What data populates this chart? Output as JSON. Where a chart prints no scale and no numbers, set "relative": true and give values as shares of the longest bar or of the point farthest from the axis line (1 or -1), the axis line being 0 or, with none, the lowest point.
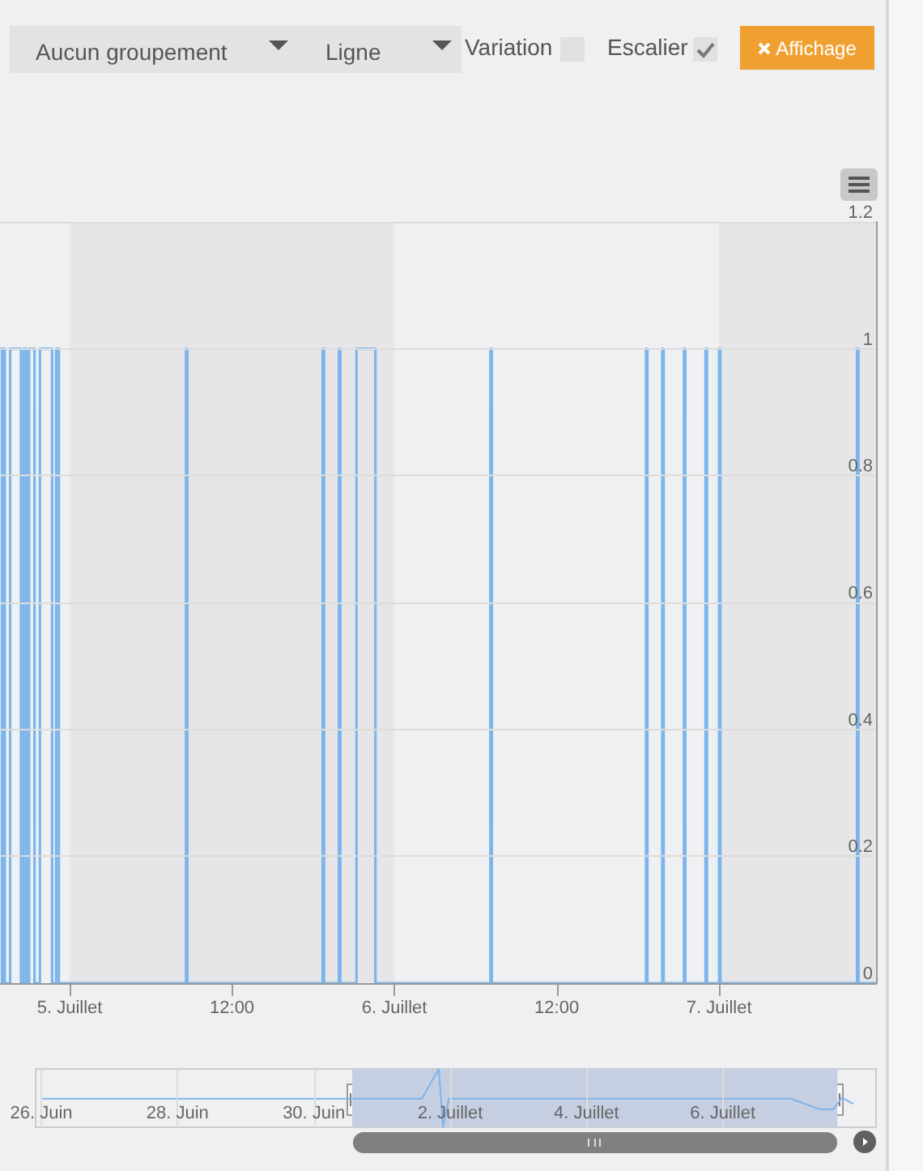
{
  "chart_data": [
    {
      "type": "other",
      "annotations": [
        "Aucun groupement",
        "Ligne",
        "Variation",
        "Escalier",
        "Affichage"
      ]
    },
    {
      "type": "step",
      "color": "#7cb5ec",
      "x": [
        "--07-04T18:51",
        "--07-04T19:00",
        "--07-04T19:06",
        "--07-04T19:12",
        "--07-04T19:36",
        "--07-04T20:24",
        "--07-04T20:36",
        "--07-04T20:48",
        "--07-04T21:00",
        "--07-04T21:24",
        "--07-04T21:48",
        "--07-04T22:42",
        "--07-04T23:00",
        "--07-04T23:12",
        "--07-05T08:36",
        "--07-05T08:42",
        "--07-05T18:42",
        "--07-05T18:48",
        "--07-05T19:54",
        "--07-05T20:00",
        "--07-05T21:12",
        "--07-05T22:36",
        "--07-06T07:06",
        "--07-06T07:12",
        "--07-06T18:36",
        "--07-06T18:42",
        "--07-06T19:48",
        "--07-06T19:54",
        "--07-06T21:24",
        "--07-06T21:30",
        "--07-06T23:00",
        "--07-06T23:06",
        "--07-07T00:00",
        "--07-07T00:06",
        "--07-07T10:12",
        "--07-07T10:18",
        "--07-07T11:36"
      ],
      "values": [
        1,
        0,
        1,
        0,
        1,
        0,
        1,
        0,
        1,
        0,
        1,
        0,
        1,
        0,
        1,
        0,
        1,
        0,
        1,
        0,
        1,
        0,
        1,
        0,
        1,
        0,
        1,
        0,
        1,
        0,
        1,
        0,
        1,
        0,
        1,
        0,
        0
      ],
      "xlim": [
        "--07-04T18:51",
        "--07-07T11:36"
      ],
      "xticks": [
        {
          "value": "--07-05",
          "label": "5. Juillet"
        },
        {
          "value": "--07-05T12:00",
          "label": "12:00"
        },
        {
          "value": "--07-06",
          "label": "6. Juillet"
        },
        {
          "value": "--07-06T12:00",
          "label": "12:00"
        },
        {
          "value": "--07-07",
          "label": "7. Juillet"
        }
      ],
      "ylim": [
        0,
        1.2
      ],
      "yticks": [
        0,
        0.2,
        0.4,
        0.6,
        0.8,
        1,
        1.2
      ],
      "grid": "y",
      "bands": [
        {
          "axis": "x",
          "from": "--07-05",
          "to": "--07-06",
          "color": "#e6e6e8"
        },
        {
          "axis": "x",
          "from": "--07-07",
          "to": "--07-07T11:36",
          "color": "#e6e6e8"
        }
      ]
    },
    {
      "type": "line",
      "color": "#7cb5ec",
      "relative": true,
      "x": [
        "--06-26",
        "--07-01T14:00",
        "--07-01T20:00",
        "--07-01T21:30",
        "--07-01T23:30",
        "--07-07",
        "--07-07T10:00",
        "--07-07T15:00",
        "--07-07T18:00",
        "--07-07T22:00"
      ],
      "values": [
        0.49,
        0.49,
        1,
        0,
        0.49,
        0.49,
        0.31,
        0.31,
        0.51,
        0.4
      ],
      "xlim": [
        "--06-25T22:00",
        "--07-08T06:00"
      ],
      "xticks": [
        {
          "value": "--06-26",
          "label": "26. Juin"
        },
        {
          "value": "--06-28",
          "label": "28. Juin"
        },
        {
          "value": "--06-30",
          "label": "30. Juin"
        },
        {
          "value": "--07-02",
          "label": "2. Juillet"
        },
        {
          "value": "--07-04",
          "label": "4. Juillet"
        },
        {
          "value": "--07-06",
          "label": "6. Juillet"
        }
      ],
      "grid": "x",
      "tick_labels": "x",
      "bands": [
        {
          "axis": "x",
          "from": "--06-30T13:30",
          "to": "--07-07T16:24",
          "color": "#c6cfe2"
        }
      ]
    }
  ]
}
